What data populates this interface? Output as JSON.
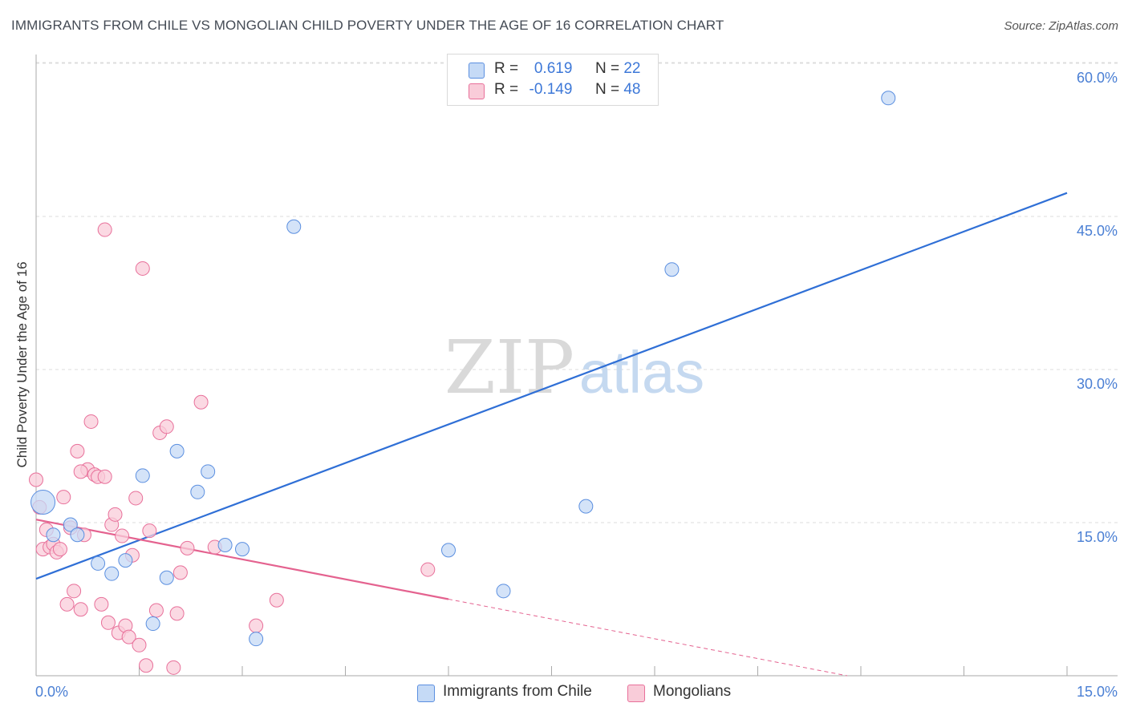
{
  "title": "IMMIGRANTS FROM CHILE VS MONGOLIAN CHILD POVERTY UNDER THE AGE OF 16 CORRELATION CHART",
  "source": "Source: ZipAtlas.com",
  "watermark": {
    "zip": "ZIP",
    "atlas": "atlas"
  },
  "legend_top": {
    "rows": [
      {
        "r_label": "R =",
        "r_value": "0.619",
        "n_label": "N =",
        "n_value": "22",
        "color": "#a9c8f0"
      },
      {
        "r_label": "R =",
        "r_value": "-0.149",
        "n_label": "N =",
        "n_value": "48",
        "color": "#f7b8cb"
      }
    ]
  },
  "legend_bottom": [
    {
      "label": "Immigrants from Chile",
      "color": "#a9c8f0"
    },
    {
      "label": "Mongolians",
      "color": "#f7b8cb"
    }
  ],
  "chart_data": {
    "type": "scatter",
    "ylabel": "Child Poverty Under the Age of 16",
    "xlabel": "",
    "xlim": [
      0,
      15
    ],
    "ylim": [
      0,
      60
    ],
    "x_tick_labels": [
      "0.0%",
      "15.0%"
    ],
    "y_tick_labels": [
      "15.0%",
      "30.0%",
      "45.0%",
      "60.0%"
    ],
    "y_tick_values": [
      15,
      30,
      45,
      60
    ],
    "grid": true,
    "legend_position": "bottom",
    "series": [
      {
        "name": "Immigrants from Chile",
        "color": "#5b8fe0",
        "fill": "#c5daf6",
        "trend": {
          "x0": 0,
          "y0": 9.5,
          "x1": 15,
          "y1": 47.3,
          "dashed_from": null
        },
        "points": [
          [
            0.1,
            17.0
          ],
          [
            0.25,
            13.8
          ],
          [
            0.5,
            14.8
          ],
          [
            0.6,
            13.8
          ],
          [
            0.9,
            11.0
          ],
          [
            1.1,
            10.0
          ],
          [
            1.3,
            11.3
          ],
          [
            1.55,
            19.6
          ],
          [
            1.7,
            5.1
          ],
          [
            1.9,
            9.6
          ],
          [
            2.05,
            22.0
          ],
          [
            2.35,
            18.0
          ],
          [
            2.5,
            20.0
          ],
          [
            2.75,
            12.8
          ],
          [
            3.0,
            12.4
          ],
          [
            3.2,
            3.6
          ],
          [
            3.75,
            44.0
          ],
          [
            6.0,
            12.3
          ],
          [
            6.8,
            8.3
          ],
          [
            8.0,
            16.6
          ],
          [
            9.25,
            39.8
          ],
          [
            12.4,
            56.6
          ]
        ]
      },
      {
        "name": "Mongolians",
        "color": "#e8709a",
        "fill": "#f9ccd9",
        "trend": {
          "x0": 0,
          "y0": 15.3,
          "x1": 6.0,
          "y1": 7.5,
          "dashed_to_x": 11.8,
          "dashed_to_y": 0
        },
        "points": [
          [
            0.0,
            19.2
          ],
          [
            0.05,
            16.5
          ],
          [
            0.1,
            12.4
          ],
          [
            0.15,
            14.3
          ],
          [
            0.2,
            12.6
          ],
          [
            0.25,
            12.9
          ],
          [
            0.3,
            12.1
          ],
          [
            0.35,
            12.4
          ],
          [
            0.4,
            17.5
          ],
          [
            0.45,
            7.0
          ],
          [
            0.5,
            14.5
          ],
          [
            0.55,
            8.3
          ],
          [
            0.6,
            22.0
          ],
          [
            0.65,
            6.5
          ],
          [
            0.7,
            13.8
          ],
          [
            0.75,
            20.2
          ],
          [
            0.8,
            24.9
          ],
          [
            0.85,
            19.7
          ],
          [
            0.9,
            19.5
          ],
          [
            1.0,
            43.7
          ],
          [
            0.95,
            7.0
          ],
          [
            1.0,
            19.5
          ],
          [
            1.05,
            5.2
          ],
          [
            1.1,
            14.8
          ],
          [
            1.15,
            15.8
          ],
          [
            1.2,
            4.2
          ],
          [
            1.25,
            13.7
          ],
          [
            1.3,
            4.9
          ],
          [
            1.35,
            3.8
          ],
          [
            1.4,
            11.8
          ],
          [
            1.45,
            17.4
          ],
          [
            1.5,
            3.0
          ],
          [
            1.55,
            39.9
          ],
          [
            1.6,
            1.0
          ],
          [
            1.65,
            14.2
          ],
          [
            1.75,
            6.4
          ],
          [
            1.8,
            23.8
          ],
          [
            1.9,
            24.4
          ],
          [
            2.0,
            0.8
          ],
          [
            2.05,
            6.1
          ],
          [
            2.1,
            10.1
          ],
          [
            2.2,
            12.5
          ],
          [
            2.4,
            26.8
          ],
          [
            2.6,
            12.6
          ],
          [
            3.2,
            4.9
          ],
          [
            3.5,
            7.4
          ],
          [
            5.7,
            10.4
          ],
          [
            0.65,
            20.0
          ]
        ]
      }
    ]
  }
}
